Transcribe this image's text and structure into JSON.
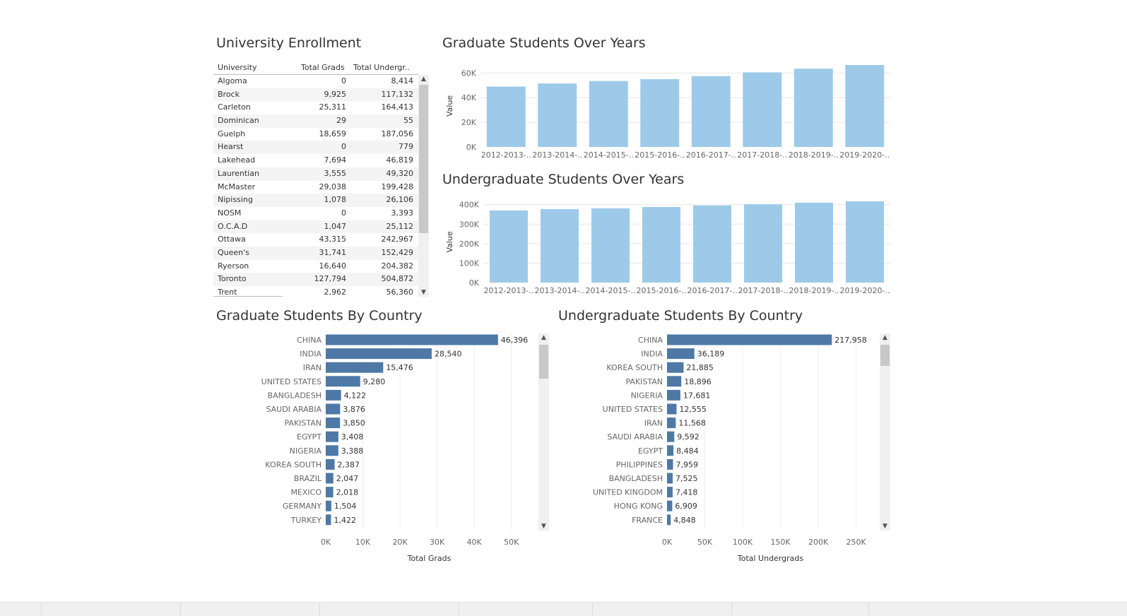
{
  "titles": {
    "enrollment": "University Enrollment",
    "grad_years": "Graduate Students Over Years",
    "ug_years": "Undergraduate Students Over Years",
    "grad_country": "Graduate Students By Country",
    "ug_country": "Undergraduate Students By Country"
  },
  "table": {
    "headers": [
      "University",
      "Total Grads",
      "Total Undergr.."
    ],
    "rows": [
      [
        "Algoma",
        "0",
        "8,414"
      ],
      [
        "Brock",
        "9,925",
        "117,132"
      ],
      [
        "Carleton",
        "25,311",
        "164,413"
      ],
      [
        "Dominican",
        "29",
        "55"
      ],
      [
        "Guelph",
        "18,659",
        "187,056"
      ],
      [
        "Hearst",
        "0",
        "779"
      ],
      [
        "Lakehead",
        "7,694",
        "46,819"
      ],
      [
        "Laurentian",
        "3,555",
        "49,320"
      ],
      [
        "McMaster",
        "29,038",
        "199,428"
      ],
      [
        "Nipissing",
        "1,078",
        "26,106"
      ],
      [
        "NOSM",
        "0",
        "3,393"
      ],
      [
        "O.C.A.D",
        "1,047",
        "25,112"
      ],
      [
        "Ottawa",
        "43,315",
        "242,967"
      ],
      [
        "Queen's",
        "31,741",
        "152,429"
      ],
      [
        "Ryerson",
        "16,640",
        "204,382"
      ],
      [
        "Toronto",
        "127,794",
        "504,872"
      ],
      [
        "Trent",
        "2,962",
        "56,360"
      ]
    ]
  },
  "colors": {
    "year_bar": "#9ecae9",
    "country_bar": "#4e79a7",
    "grid": "#e6e6e6"
  },
  "chart_data": [
    {
      "type": "bar",
      "categories": [
        "2012-2013-..",
        "2013-2014-..",
        "2014-2015-..",
        "2015-2016-..",
        "2016-2017-..",
        "2017-2018-..",
        "2018-2019-..",
        "2019-2020-.."
      ],
      "values": [
        49000,
        51500,
        53500,
        55000,
        57500,
        60500,
        63500,
        66500
      ],
      "ylabel": "Value",
      "ylim": [
        0,
        66500
      ],
      "yticks": [
        0,
        20000,
        40000,
        60000
      ],
      "yticklabels": [
        "0K",
        "20K",
        "40K",
        "60K"
      ]
    },
    {
      "type": "bar",
      "categories": [
        "2012-2013-..",
        "2013-2014-..",
        "2014-2015-..",
        "2015-2016-..",
        "2016-2017-..",
        "2017-2018-..",
        "2018-2019-..",
        "2019-2020-.."
      ],
      "values": [
        370000,
        377000,
        381000,
        388000,
        396000,
        402000,
        410000,
        417000
      ],
      "ylabel": "Value",
      "ylim": [
        0,
        417000
      ],
      "yticks": [
        0,
        100000,
        200000,
        300000,
        400000
      ],
      "yticklabels": [
        "0K",
        "100K",
        "200K",
        "300K",
        "400K"
      ]
    },
    {
      "type": "bar",
      "orientation": "horizontal",
      "categories": [
        "CHINA",
        "INDIA",
        "IRAN",
        "UNITED STATES",
        "BANGLADESH",
        "SAUDI ARABIA",
        "PAKISTAN",
        "EGYPT",
        "NIGERIA",
        "KOREA SOUTH",
        "BRAZIL",
        "MEXICO",
        "GERMANY",
        "TURKEY"
      ],
      "values": [
        46396,
        28540,
        15476,
        9280,
        4122,
        3876,
        3850,
        3408,
        3388,
        2387,
        2047,
        2018,
        1504,
        1422
      ],
      "value_labels": [
        "46,396",
        "28,540",
        "15,476",
        "9,280",
        "4,122",
        "3,876",
        "3,850",
        "3,408",
        "3,388",
        "2,387",
        "2,047",
        "2,018",
        "1,504",
        "1,422"
      ],
      "xlabel": "Total Grads",
      "xlim": [
        0,
        55000
      ],
      "xticks": [
        0,
        10000,
        20000,
        30000,
        40000,
        50000
      ],
      "xticklabels": [
        "0K",
        "10K",
        "20K",
        "30K",
        "40K",
        "50K"
      ]
    },
    {
      "type": "bar",
      "orientation": "horizontal",
      "categories": [
        "CHINA",
        "INDIA",
        "KOREA SOUTH",
        "PAKISTAN",
        "NIGERIA",
        "UNITED STATES",
        "IRAN",
        "SAUDI ARABIA",
        "EGYPT",
        "PHILIPPINES",
        "BANGLADESH",
        "UNITED KINGDOM",
        "HONG KONG",
        "FRANCE"
      ],
      "values": [
        217958,
        36189,
        21885,
        18896,
        17681,
        12555,
        11568,
        9592,
        8484,
        7959,
        7525,
        7418,
        6909,
        4848
      ],
      "value_labels": [
        "217,958",
        "36,189",
        "21,885",
        "18,896",
        "17,681",
        "12,555",
        "11,568",
        "9,592",
        "8,484",
        "7,959",
        "7,525",
        "7,418",
        "6,909",
        "4,848"
      ],
      "xlabel": "Total Undergrads",
      "xlim": [
        0,
        270000
      ],
      "xticks": [
        0,
        50000,
        100000,
        150000,
        200000,
        250000
      ],
      "xticklabels": [
        "0K",
        "50K",
        "100K",
        "150K",
        "200K",
        "250K"
      ]
    }
  ]
}
